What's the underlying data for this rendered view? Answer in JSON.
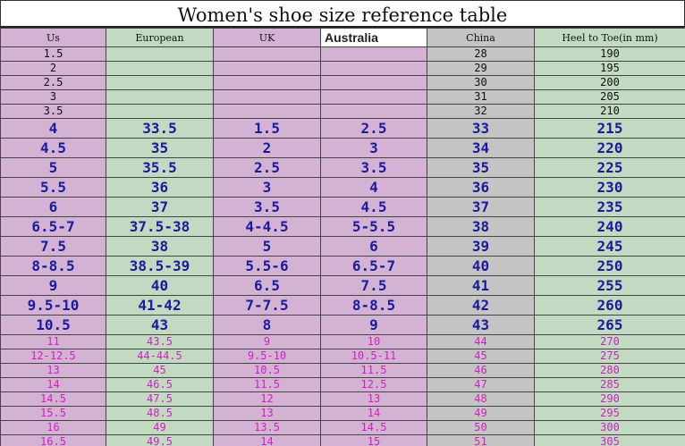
{
  "title": "Women's shoe size reference table",
  "headers": [
    "Us",
    "European",
    "UK",
    "Australia",
    "China",
    "Heel to Toe(in mm)"
  ],
  "rows": [
    {
      "style": "small",
      "cells": [
        "1.5",
        "",
        "",
        "",
        "28",
        "190"
      ]
    },
    {
      "style": "small",
      "cells": [
        "2",
        "",
        "",
        "",
        "29",
        "195"
      ]
    },
    {
      "style": "small",
      "cells": [
        "2.5",
        "",
        "",
        "",
        "30",
        "200"
      ]
    },
    {
      "style": "small",
      "cells": [
        "3",
        "",
        "",
        "",
        "31",
        "205"
      ]
    },
    {
      "style": "small",
      "cells": [
        "3.5",
        "",
        "",
        "",
        "32",
        "210"
      ]
    },
    {
      "style": "big",
      "cells": [
        "4",
        "33.5",
        "1.5",
        "2.5",
        "33",
        "215"
      ]
    },
    {
      "style": "big",
      "cells": [
        "4.5",
        "35",
        "2",
        "3",
        "34",
        "220"
      ]
    },
    {
      "style": "big",
      "cells": [
        "5",
        "35.5",
        "2.5",
        "3.5",
        "35",
        "225"
      ]
    },
    {
      "style": "big",
      "cells": [
        "5.5",
        "36",
        "3",
        "4",
        "36",
        "230"
      ]
    },
    {
      "style": "big",
      "cells": [
        "6",
        "37",
        "3.5",
        "4.5",
        "37",
        "235"
      ]
    },
    {
      "style": "big",
      "cells": [
        "6.5-7",
        "37.5-38",
        "4-4.5",
        "5-5.5",
        "38",
        "240"
      ]
    },
    {
      "style": "big",
      "cells": [
        "7.5",
        "38",
        "5",
        "6",
        "39",
        "245"
      ]
    },
    {
      "style": "big",
      "cells": [
        "8-8.5",
        "38.5-39",
        "5.5-6",
        "6.5-7",
        "40",
        "250"
      ]
    },
    {
      "style": "big",
      "cells": [
        "9",
        "40",
        "6.5",
        "7.5",
        "41",
        "255"
      ]
    },
    {
      "style": "big",
      "cells": [
        "9.5-10",
        "41-42",
        "7-7.5",
        "8-8.5",
        "42",
        "260"
      ]
    },
    {
      "style": "big",
      "cells": [
        "10.5",
        "43",
        "8",
        "9",
        "43",
        "265"
      ]
    },
    {
      "style": "pink",
      "cells": [
        "11",
        "43.5",
        "9",
        "10",
        "44",
        "270"
      ]
    },
    {
      "style": "pink",
      "cells": [
        "12-12.5",
        "44-44.5",
        "9.5-10",
        "10.5-11",
        "45",
        "275"
      ]
    },
    {
      "style": "pink",
      "cells": [
        "13",
        "45",
        "10.5",
        "11.5",
        "46",
        "280"
      ]
    },
    {
      "style": "pink",
      "cells": [
        "14",
        "46.5",
        "11.5",
        "12.5",
        "47",
        "285"
      ]
    },
    {
      "style": "pink",
      "cells": [
        "14.5",
        "47.5",
        "12",
        "13",
        "48",
        "290"
      ]
    },
    {
      "style": "pink",
      "cells": [
        "15.5",
        "48.5",
        "13",
        "14",
        "49",
        "295"
      ]
    },
    {
      "style": "pink",
      "cells": [
        "16",
        "49",
        "13.5",
        "14.5",
        "50",
        "300"
      ]
    },
    {
      "style": "pink",
      "cells": [
        "16.5",
        "49.5",
        "14",
        "15",
        "51",
        "305"
      ]
    }
  ]
}
